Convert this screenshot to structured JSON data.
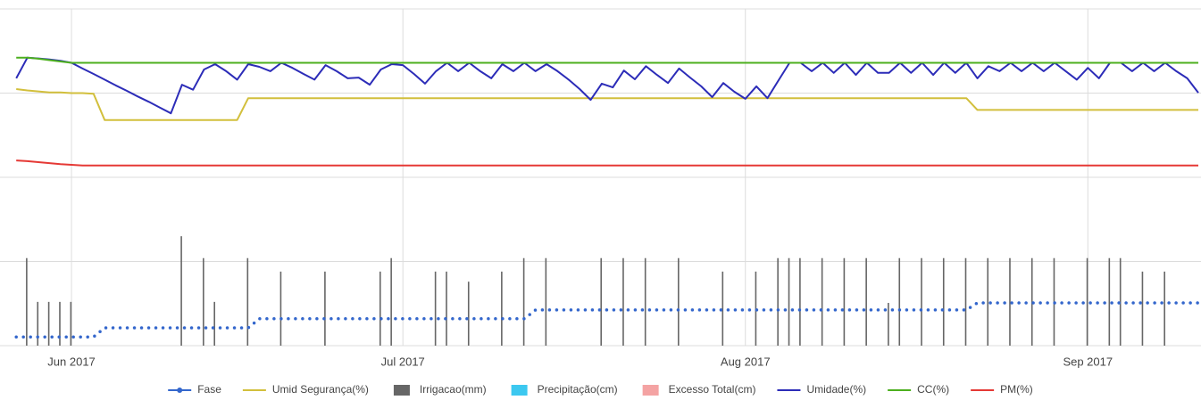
{
  "chart_data": {
    "type": "line",
    "categories": [
      null,
      null,
      null,
      null,
      null,
      "Jun 2017",
      null,
      null,
      null,
      null,
      null,
      null,
      null,
      null,
      null,
      null,
      null,
      null,
      null,
      null,
      null,
      null,
      null,
      null,
      null,
      null,
      null,
      null,
      null,
      null,
      null,
      null,
      null,
      null,
      null,
      "Jul 2017",
      null,
      null,
      null,
      null,
      null,
      null,
      null,
      null,
      null,
      null,
      null,
      null,
      null,
      null,
      null,
      null,
      null,
      null,
      null,
      null,
      null,
      null,
      null,
      null,
      null,
      null,
      null,
      null,
      null,
      null,
      "Aug 2017",
      null,
      null,
      null,
      null,
      null,
      null,
      null,
      null,
      null,
      null,
      null,
      null,
      null,
      null,
      null,
      null,
      null,
      null,
      null,
      null,
      null,
      null,
      null,
      null,
      null,
      null,
      null,
      null,
      null,
      null,
      "Sep 2017",
      null,
      null,
      null,
      null,
      null,
      null,
      null,
      null,
      null,
      null
    ],
    "ylim": [
      0,
      100
    ],
    "ygrid": [
      0,
      25,
      50,
      75,
      100
    ],
    "series": [
      {
        "name": "Fase",
        "color": "#3366cc",
        "kind": "dots",
        "values": [
          2.6,
          2.6,
          2.6,
          2.6,
          2.6,
          2.6,
          2.6,
          2.6,
          5.3,
          5.3,
          5.3,
          5.3,
          5.3,
          5.3,
          5.3,
          5.3,
          5.3,
          5.3,
          5.3,
          5.3,
          5.3,
          5.3,
          8,
          8,
          8,
          8,
          8,
          8,
          8,
          8,
          8,
          8,
          8,
          8,
          8,
          8,
          8,
          8,
          8,
          8,
          8,
          8,
          8,
          8,
          8,
          8,
          8,
          10.6,
          10.6,
          10.6,
          10.6,
          10.6,
          10.6,
          10.6,
          10.6,
          10.6,
          10.6,
          10.6,
          10.6,
          10.6,
          10.6,
          10.6,
          10.6,
          10.6,
          10.6,
          10.6,
          10.6,
          10.6,
          10.6,
          10.6,
          10.6,
          10.6,
          10.6,
          10.6,
          10.6,
          10.6,
          10.6,
          10.6,
          10.6,
          10.6,
          10.6,
          10.6,
          10.6,
          10.6,
          10.6,
          10.6,
          10.6,
          12.7,
          12.7,
          12.7,
          12.7,
          12.7,
          12.7,
          12.7,
          12.7,
          12.7,
          12.7,
          12.7,
          12.7,
          12.7,
          12.7,
          12.7,
          12.7,
          12.7,
          12.7,
          12.7,
          12.7,
          12.7
        ]
      },
      {
        "name": "Umid Segurança(%)",
        "color": "#d2bf3c",
        "kind": "line",
        "values": [
          76.2,
          75.8,
          75.5,
          75.2,
          75.2,
          75,
          75,
          74.8,
          67,
          67,
          67,
          67,
          67,
          67,
          67,
          67,
          67,
          67,
          67,
          67,
          67,
          73.5,
          73.5,
          73.5,
          73.5,
          73.5,
          73.5,
          73.5,
          73.5,
          73.5,
          73.5,
          73.5,
          73.5,
          73.5,
          73.5,
          73.5,
          73.5,
          73.5,
          73.5,
          73.5,
          73.5,
          73.5,
          73.5,
          73.5,
          73.5,
          73.5,
          73.5,
          73.5,
          73.5,
          73.5,
          73.5,
          73.5,
          73.5,
          73.5,
          73.5,
          73.5,
          73.5,
          73.5,
          73.5,
          73.5,
          73.5,
          73.5,
          73.5,
          73.5,
          73.5,
          73.5,
          73.5,
          73.5,
          73.5,
          73.5,
          73.5,
          73.5,
          73.5,
          73.5,
          73.5,
          73.5,
          73.5,
          73.5,
          73.5,
          73.5,
          73.5,
          73.5,
          73.5,
          73.5,
          73.5,
          73.5,
          73.5,
          70,
          70,
          70,
          70,
          70,
          70,
          70,
          70,
          70,
          70,
          70,
          70,
          70,
          70,
          70,
          70,
          70,
          70,
          70,
          70,
          70
        ]
      },
      {
        "name": "Irrigacao(mm)",
        "color": "#666666",
        "kind": "bar",
        "values": [
          null,
          26,
          13,
          13,
          13,
          13,
          null,
          null,
          null,
          null,
          null,
          null,
          null,
          null,
          null,
          32.5,
          null,
          26,
          13,
          null,
          null,
          26,
          null,
          null,
          22,
          null,
          null,
          null,
          22,
          null,
          null,
          null,
          null,
          22,
          26,
          null,
          null,
          null,
          22,
          22,
          null,
          19,
          null,
          null,
          22,
          null,
          26,
          null,
          26,
          null,
          null,
          null,
          null,
          26,
          null,
          26,
          null,
          26,
          null,
          null,
          26,
          null,
          null,
          null,
          22,
          null,
          null,
          22,
          null,
          26,
          26,
          26,
          null,
          26,
          null,
          26,
          null,
          26,
          null,
          12.7,
          26,
          null,
          26,
          null,
          26,
          null,
          26,
          null,
          26,
          null,
          26,
          null,
          26,
          null,
          26,
          null,
          null,
          26,
          null,
          26,
          26,
          null,
          22,
          null,
          22,
          null,
          null,
          null
        ]
      },
      {
        "name": "Precipitação(cm)",
        "color": "#3cc8f0",
        "kind": "bar",
        "values": [
          null,
          null,
          null,
          null,
          null,
          null,
          null,
          null,
          null,
          null,
          null,
          null,
          null,
          null,
          null,
          null,
          null,
          null,
          null,
          null,
          null,
          null,
          null,
          null,
          null,
          null,
          null,
          null,
          null,
          null,
          null,
          null,
          null,
          null,
          null,
          null,
          null,
          null,
          null,
          null,
          null,
          null,
          null,
          null,
          null,
          null,
          null,
          null,
          null,
          null,
          null,
          null,
          null,
          null,
          null,
          null,
          null,
          null,
          null,
          null,
          null,
          null,
          null,
          null,
          null,
          null,
          null,
          null,
          null,
          null,
          null,
          null,
          null,
          null,
          null,
          null,
          null,
          null,
          null,
          null,
          null,
          null,
          null,
          null,
          null,
          null,
          null,
          null,
          null,
          null,
          null,
          null,
          null,
          null,
          null,
          null,
          null,
          null,
          null,
          null,
          null,
          null,
          null,
          null,
          null,
          null,
          null,
          null
        ]
      },
      {
        "name": "Excesso Total(cm)",
        "color": "#f4a3a3",
        "kind": "bar",
        "values": [
          null,
          null,
          null,
          null,
          null,
          null,
          null,
          null,
          null,
          null,
          null,
          null,
          null,
          null,
          null,
          null,
          null,
          null,
          null,
          null,
          null,
          null,
          null,
          null,
          null,
          null,
          null,
          null,
          null,
          null,
          null,
          null,
          null,
          null,
          null,
          null,
          null,
          null,
          null,
          null,
          null,
          null,
          null,
          null,
          null,
          null,
          null,
          null,
          null,
          null,
          null,
          null,
          null,
          null,
          null,
          null,
          null,
          null,
          null,
          null,
          null,
          null,
          null,
          null,
          null,
          null,
          null,
          null,
          null,
          null,
          null,
          null,
          null,
          null,
          null,
          null,
          null,
          null,
          null,
          null,
          null,
          null,
          null,
          null,
          null,
          null,
          null,
          null,
          null,
          null,
          null,
          null,
          null,
          null,
          null,
          null,
          null,
          null,
          null,
          null,
          null,
          null,
          null,
          null,
          null,
          null,
          null,
          null
        ]
      },
      {
        "name": "Umidade(%)",
        "color": "#2c2cb8",
        "kind": "line",
        "values": [
          79.4,
          85.5,
          85.3,
          85,
          84.6,
          84,
          82.3,
          80.7,
          79,
          77.3,
          75.7,
          74,
          72.4,
          70.7,
          69,
          77.5,
          76,
          82,
          83.6,
          81.5,
          79,
          83.6,
          82.8,
          81.5,
          84,
          82.5,
          80.7,
          79,
          83.3,
          81.5,
          79.4,
          79.6,
          77.5,
          82,
          83.6,
          83.3,
          80.7,
          77.8,
          81.5,
          84,
          81.5,
          84,
          81.5,
          79.4,
          83.6,
          81.5,
          84,
          81.5,
          83.6,
          81.5,
          79,
          76.2,
          73,
          77.8,
          76.7,
          81.7,
          79.1,
          83,
          80.4,
          78,
          82.3,
          79.6,
          77,
          73.8,
          78,
          75.4,
          73.3,
          77,
          73.5,
          78.8,
          84,
          84,
          81.5,
          84,
          81,
          84,
          80.4,
          84,
          81,
          81,
          84,
          81,
          84,
          80.4,
          84,
          81,
          84,
          79.4,
          83,
          81.5,
          84,
          81.5,
          84,
          81.5,
          84,
          81.5,
          79,
          82.5,
          79.4,
          84,
          84,
          81.5,
          84,
          81.5,
          84,
          81.5,
          79.4,
          75.1
        ]
      },
      {
        "name": "CC(%)",
        "color": "#4caf1e",
        "kind": "line",
        "values": [
          85.5,
          85.5,
          85.2,
          84.8,
          84.4,
          84,
          84,
          84,
          84,
          84,
          84,
          84,
          84,
          84,
          84,
          84,
          84,
          84,
          84,
          84,
          84,
          84,
          84,
          84,
          84,
          84,
          84,
          84,
          84,
          84,
          84,
          84,
          84,
          84,
          84,
          84,
          84,
          84,
          84,
          84,
          84,
          84,
          84,
          84,
          84,
          84,
          84,
          84,
          84,
          84,
          84,
          84,
          84,
          84,
          84,
          84,
          84,
          84,
          84,
          84,
          84,
          84,
          84,
          84,
          84,
          84,
          84,
          84,
          84,
          84,
          84,
          84,
          84,
          84,
          84,
          84,
          84,
          84,
          84,
          84,
          84,
          84,
          84,
          84,
          84,
          84,
          84,
          84,
          84,
          84,
          84,
          84,
          84,
          84,
          84,
          84,
          84,
          84,
          84,
          84,
          84,
          84,
          84,
          84,
          84,
          84,
          84,
          84
        ]
      },
      {
        "name": "PM(%)",
        "color": "#e53935",
        "kind": "line",
        "values": [
          55,
          54.8,
          54.5,
          54.2,
          53.9,
          53.7,
          53.5,
          53.5,
          53.5,
          53.5,
          53.5,
          53.5,
          53.5,
          53.5,
          53.5,
          53.5,
          53.5,
          53.5,
          53.5,
          53.5,
          53.5,
          53.5,
          53.5,
          53.5,
          53.5,
          53.5,
          53.5,
          53.5,
          53.5,
          53.5,
          53.5,
          53.5,
          53.5,
          53.5,
          53.5,
          53.5,
          53.5,
          53.5,
          53.5,
          53.5,
          53.5,
          53.5,
          53.5,
          53.5,
          53.5,
          53.5,
          53.5,
          53.5,
          53.5,
          53.5,
          53.5,
          53.5,
          53.5,
          53.5,
          53.5,
          53.5,
          53.5,
          53.5,
          53.5,
          53.5,
          53.5,
          53.5,
          53.5,
          53.5,
          53.5,
          53.5,
          53.5,
          53.5,
          53.5,
          53.5,
          53.5,
          53.5,
          53.5,
          53.5,
          53.5,
          53.5,
          53.5,
          53.5,
          53.5,
          53.5,
          53.5,
          53.5,
          53.5,
          53.5,
          53.5,
          53.5,
          53.5,
          53.5,
          53.5,
          53.5,
          53.5,
          53.5,
          53.5,
          53.5,
          53.5,
          53.5,
          53.5,
          53.5,
          53.5,
          53.5,
          53.5,
          53.5,
          53.5,
          53.5,
          53.5,
          53.5,
          53.5,
          53.5
        ]
      }
    ]
  }
}
